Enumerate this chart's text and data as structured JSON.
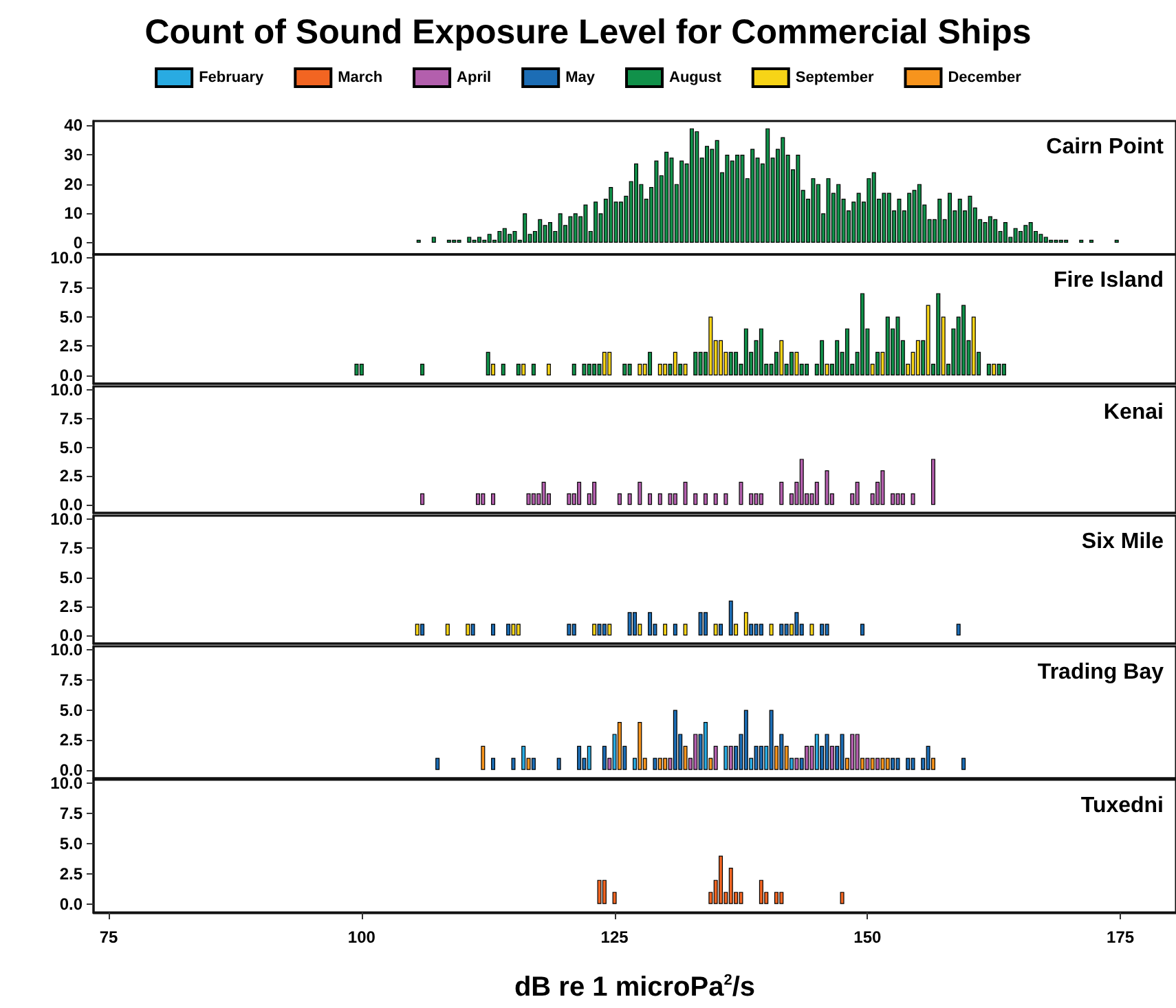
{
  "chart_data": [
    {
      "type": "bar",
      "title": "Count of Sound Exposure Level for Commercial Ships",
      "subtitle": "Cairn Point",
      "legend": "top",
      "tick_labels": "y",
      "grid": false,
      "xlim": [
        73.5,
        180.5
      ],
      "ylim": [
        -4,
        41.5
      ],
      "yticks": [
        0,
        10,
        20,
        30,
        40
      ],
      "series": [
        {
          "name": "February",
          "color": "#29abe2"
        },
        {
          "name": "March",
          "color": "#f26522"
        },
        {
          "name": "April",
          "color": "#b35fad"
        },
        {
          "name": "May",
          "color": "#1c6db5"
        },
        {
          "name": "August",
          "color": "#11914a",
          "x": [
            105.5,
            107,
            108.5,
            109,
            109.5,
            110.5,
            111,
            111.5,
            112,
            112.5,
            113,
            113.5,
            114,
            114.5,
            115,
            115.5,
            116,
            116.5,
            117,
            117.5,
            118,
            118.5,
            119,
            119.5,
            120,
            120.5,
            121,
            121.5,
            122,
            122.5,
            123,
            123.5,
            124,
            124.5,
            125,
            125.5,
            126,
            126.5,
            127,
            127.5,
            128,
            128.5,
            129,
            129.5,
            130,
            130.5,
            131,
            131.5,
            132,
            132.5,
            133,
            133.5,
            134,
            134.5,
            135,
            135.5,
            136,
            136.5,
            137,
            137.5,
            138,
            138.5,
            139,
            139.5,
            140,
            140.5,
            141,
            141.5,
            142,
            142.5,
            143,
            143.5,
            144,
            144.5,
            145,
            145.5,
            146,
            146.5,
            147,
            147.5,
            148,
            148.5,
            149,
            149.5,
            150,
            150.5,
            151,
            151.5,
            152,
            152.5,
            153,
            153.5,
            154,
            154.5,
            155,
            155.5,
            156,
            156.5,
            157,
            157.5,
            158,
            158.5,
            159,
            159.5,
            160,
            160.5,
            161,
            161.5,
            162,
            162.5,
            163,
            163.5,
            164,
            164.5,
            165,
            165.5,
            166,
            166.5,
            167,
            167.5,
            168,
            168.5,
            169,
            169.5,
            171,
            172,
            174.5
          ],
          "values": [
            1,
            2,
            1,
            1,
            1,
            2,
            1,
            2,
            1,
            3,
            1,
            4,
            5,
            3,
            4,
            1,
            10,
            3,
            4,
            8,
            6,
            7,
            4,
            10,
            6,
            9,
            10,
            9,
            13,
            4,
            14,
            10,
            15,
            19,
            14,
            14,
            16,
            21,
            27,
            20,
            15,
            19,
            28,
            23,
            31,
            29,
            20,
            28,
            27,
            39,
            38,
            29,
            33,
            32,
            35,
            24,
            30,
            28,
            30,
            30,
            22,
            32,
            29,
            27,
            39,
            29,
            32,
            36,
            30,
            25,
            30,
            18,
            15,
            22,
            20,
            10,
            22,
            17,
            20,
            15,
            11,
            14,
            17,
            14,
            22,
            24,
            15,
            17,
            17,
            11,
            15,
            11,
            17,
            18,
            20,
            13,
            8,
            8,
            15,
            8,
            17,
            11,
            15,
            11,
            16,
            12,
            8,
            7,
            9,
            8,
            4,
            7,
            2,
            5,
            4,
            6,
            7,
            4,
            3,
            2,
            1,
            1,
            1,
            1,
            1,
            1,
            1
          ]
        },
        {
          "name": "September",
          "color": "#f7d417"
        },
        {
          "name": "December",
          "color": "#f7941d"
        }
      ]
    },
    {
      "type": "bar",
      "title": "Fire Island",
      "tick_labels": "y",
      "grid": false,
      "xlim": [
        73.5,
        180.5
      ],
      "ylim": [
        -0.7,
        10.3
      ],
      "yticks": [
        {
          "value": 0,
          "label": "0.0"
        },
        {
          "value": 2.5,
          "label": "2.5"
        },
        {
          "value": 5,
          "label": "5.0"
        },
        {
          "value": 7.5,
          "label": "7.5"
        },
        {
          "value": 10,
          "label": "10.0"
        }
      ],
      "series": [
        {
          "color": "#11914a",
          "x": [
            99.5,
            100,
            106,
            112.5,
            114,
            115.5,
            117,
            121,
            122,
            122.5,
            123,
            123.5,
            126,
            126.5,
            128.5,
            130.5,
            131.5,
            133,
            133.5,
            134,
            136.5,
            137,
            137.5,
            138,
            138.5,
            139,
            139.5,
            140,
            140.5,
            141,
            142,
            142.5,
            143.5,
            144,
            145,
            145.5,
            146.5,
            147,
            147.5,
            148,
            148.5,
            149,
            149.5,
            150,
            151,
            152,
            152.5,
            153,
            153.5,
            155.5,
            156.5,
            157,
            158,
            158.5,
            159,
            159.5,
            160,
            161,
            162,
            163,
            163.5
          ],
          "values": [
            1,
            1,
            1,
            2,
            1,
            1,
            1,
            1,
            1,
            1,
            1,
            1,
            1,
            1,
            2,
            1,
            1,
            2,
            2,
            2,
            2,
            2,
            1,
            4,
            2,
            3,
            4,
            1,
            1,
            2,
            1,
            2,
            1,
            1,
            1,
            3,
            1,
            3,
            2,
            4,
            1,
            2,
            7,
            4,
            2,
            5,
            4,
            5,
            3,
            3,
            1,
            7,
            1,
            4,
            5,
            6,
            3,
            2,
            1,
            1,
            1
          ]
        },
        {
          "color": "#f7d417",
          "x": [
            113,
            116,
            118.5,
            124,
            124.5,
            127.5,
            128,
            129.5,
            130,
            131,
            132,
            134.5,
            135,
            135.5,
            136,
            141.5,
            143,
            146,
            150.5,
            151.5,
            154,
            154.5,
            155,
            156,
            157.5,
            160.5,
            162.5
          ],
          "values": [
            1,
            1,
            1,
            2,
            2,
            1,
            1,
            1,
            1,
            2,
            1,
            5,
            3,
            3,
            2,
            3,
            2,
            1,
            1,
            2,
            1,
            2,
            3,
            6,
            5,
            5,
            1
          ]
        }
      ]
    },
    {
      "type": "bar",
      "title": "Kenai",
      "tick_labels": "y",
      "grid": false,
      "xlim": [
        73.5,
        180.5
      ],
      "ylim": [
        -0.7,
        10.3
      ],
      "yticks": [
        {
          "value": 0,
          "label": "0.0"
        },
        {
          "value": 2.5,
          "label": "2.5"
        },
        {
          "value": 5,
          "label": "5.0"
        },
        {
          "value": 7.5,
          "label": "7.5"
        },
        {
          "value": 10,
          "label": "10.0"
        }
      ],
      "series": [
        {
          "color": "#b35fad",
          "x": [
            106,
            111.5,
            112,
            113,
            116.5,
            117,
            117.5,
            118,
            118.5,
            120.5,
            121,
            121.5,
            122.5,
            123,
            125.5,
            126.5,
            127.5,
            128.5,
            129.5,
            130.5,
            131,
            132,
            133,
            134,
            135,
            136,
            137.5,
            138.5,
            139,
            139.5,
            141.5,
            142.5,
            143,
            143.5,
            144,
            144.5,
            145,
            146,
            146.5,
            148.5,
            149,
            150.5,
            151,
            151.5,
            152.5,
            153,
            153.5,
            154.5,
            156.5
          ],
          "values": [
            1,
            1,
            1,
            1,
            1,
            1,
            1,
            2,
            1,
            1,
            1,
            2,
            1,
            2,
            1,
            1,
            2,
            1,
            1,
            1,
            1,
            2,
            1,
            1,
            1,
            1,
            2,
            1,
            1,
            1,
            2,
            1,
            2,
            4,
            1,
            1,
            2,
            3,
            1,
            1,
            2,
            1,
            2,
            3,
            1,
            1,
            1,
            1,
            4
          ]
        }
      ]
    },
    {
      "type": "bar",
      "title": "Six Mile",
      "tick_labels": "y",
      "grid": false,
      "xlim": [
        73.5,
        180.5
      ],
      "ylim": [
        -0.7,
        10.3
      ],
      "yticks": [
        {
          "value": 0,
          "label": "0.0"
        },
        {
          "value": 2.5,
          "label": "2.5"
        },
        {
          "value": 5,
          "label": "5.0"
        },
        {
          "value": 7.5,
          "label": "7.5"
        },
        {
          "value": 10,
          "label": "10.0"
        }
      ],
      "series": [
        {
          "color": "#1c6db5",
          "x": [
            106,
            111,
            113,
            114.5,
            120.5,
            121,
            123.5,
            124,
            126.5,
            127,
            128.5,
            129,
            131,
            133.5,
            134,
            135.5,
            136.5,
            138.5,
            139,
            139.5,
            141.5,
            142,
            143,
            143.5,
            145.5,
            146,
            149.5,
            159
          ],
          "values": [
            1,
            1,
            1,
            1,
            1,
            1,
            1,
            1,
            2,
            2,
            2,
            1,
            1,
            2,
            2,
            1,
            3,
            1,
            1,
            1,
            1,
            1,
            2,
            1,
            1,
            1,
            1,
            1
          ]
        },
        {
          "color": "#f7d417",
          "x": [
            105.5,
            108.5,
            110.5,
            115,
            115.5,
            123,
            124.5,
            127.5,
            130,
            132,
            135,
            137,
            138,
            140.5,
            142.5,
            144.5
          ],
          "values": [
            1,
            1,
            1,
            1,
            1,
            1,
            1,
            1,
            1,
            1,
            1,
            1,
            2,
            1,
            1,
            1
          ]
        }
      ]
    },
    {
      "type": "bar",
      "title": "Trading Bay",
      "tick_labels": "y",
      "grid": false,
      "xlim": [
        73.5,
        180.5
      ],
      "ylim": [
        -0.7,
        10.3
      ],
      "yticks": [
        {
          "value": 0,
          "label": "0.0"
        },
        {
          "value": 2.5,
          "label": "2.5"
        },
        {
          "value": 5,
          "label": "5.0"
        },
        {
          "value": 7.5,
          "label": "7.5"
        },
        {
          "value": 10,
          "label": "10.0"
        }
      ],
      "series": [
        {
          "color": "#29abe2",
          "x": [
            116,
            122.5,
            125,
            127,
            134,
            136,
            138.5,
            140,
            142.5,
            145
          ],
          "values": [
            2,
            2,
            3,
            1,
            4,
            2,
            1,
            2,
            1,
            3
          ]
        },
        {
          "color": "#b35fad",
          "x": [
            124.5,
            130.5,
            132.5,
            133,
            135,
            136.5,
            143,
            144,
            144.5,
            146.5,
            148.5,
            149,
            150,
            151
          ],
          "values": [
            1,
            1,
            1,
            3,
            2,
            2,
            1,
            2,
            2,
            2,
            3,
            3,
            1,
            1
          ]
        },
        {
          "color": "#1c6db5",
          "x": [
            107.5,
            113,
            115,
            117,
            119.5,
            121.5,
            122,
            124,
            126,
            129,
            131,
            131.5,
            133.5,
            137,
            137.5,
            138,
            139,
            139.5,
            140.5,
            141.5,
            143.5,
            145.5,
            146,
            147,
            147.5,
            152.5,
            153,
            154,
            154.5,
            155.5,
            156,
            159.5
          ],
          "values": [
            1,
            1,
            1,
            1,
            1,
            2,
            1,
            2,
            2,
            1,
            5,
            3,
            3,
            2,
            3,
            5,
            2,
            2,
            5,
            3,
            1,
            2,
            3,
            2,
            3,
            1,
            1,
            1,
            1,
            1,
            2,
            1
          ]
        },
        {
          "color": "#f7941d",
          "x": [
            112,
            116.5,
            125.5,
            127.5,
            128,
            129.5,
            130,
            132,
            134.5,
            141,
            142,
            148,
            149.5,
            150.5,
            151.5,
            152,
            156.5
          ],
          "values": [
            2,
            1,
            4,
            4,
            1,
            1,
            1,
            2,
            1,
            2,
            2,
            1,
            1,
            1,
            1,
            1,
            1
          ]
        }
      ]
    },
    {
      "type": "bar",
      "title": "Tuxedni",
      "xlabel": "dB re 1 microPa$^{2}$/s",
      "grid": false,
      "xlim": [
        73.5,
        180.5
      ],
      "xticks": [
        75,
        100,
        125,
        150,
        175
      ],
      "ylim": [
        -0.7,
        10.3
      ],
      "yticks": [
        {
          "value": 0,
          "label": "0.0"
        },
        {
          "value": 2.5,
          "label": "2.5"
        },
        {
          "value": 5,
          "label": "5.0"
        },
        {
          "value": 7.5,
          "label": "7.5"
        },
        {
          "value": 10,
          "label": "10.0"
        }
      ],
      "series": [
        {
          "color": "#f26522",
          "x": [
            123.5,
            124,
            125,
            134.5,
            135,
            135.5,
            136,
            136.5,
            137,
            137.5,
            139.5,
            140,
            141,
            141.5,
            147.5
          ],
          "values": [
            2,
            2,
            1,
            1,
            2,
            4,
            1,
            3,
            1,
            1,
            2,
            1,
            1,
            1,
            1
          ]
        }
      ]
    }
  ]
}
